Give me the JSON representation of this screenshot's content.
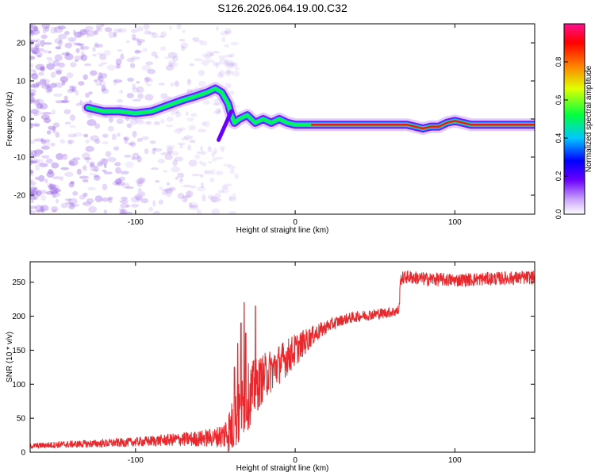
{
  "title": "S126.2026.064.19.00.C32",
  "colors": {
    "snr_line": "#e8282c",
    "spectrogram_noise": "#a070e8",
    "axis": "#000000"
  },
  "chart_data": [
    {
      "type": "heatmap",
      "name": "spectrogram",
      "xlabel": "Height of straight line (km)",
      "ylabel": "Frequency (Hz)",
      "xlim": [
        -166,
        150
      ],
      "ylim": [
        -25,
        25
      ],
      "xticks": [
        -100,
        0,
        100
      ],
      "yticks": [
        -20,
        -10,
        0,
        10,
        20
      ],
      "xtick_labels": [
        "-100",
        "0",
        "100"
      ],
      "ytick_labels": [
        "-20",
        "-10",
        "0",
        "10",
        "20"
      ],
      "ridge": {
        "x": [
          -130,
          -120,
          -110,
          -100,
          -90,
          -80,
          -70,
          -62,
          -55,
          -50,
          -46,
          -42,
          -40,
          -38,
          -35,
          -30,
          -25,
          -20,
          -15,
          -10,
          -5,
          0,
          10,
          20,
          40,
          60,
          70,
          75,
          80,
          85,
          90,
          95,
          100,
          110,
          130,
          150
        ],
        "y": [
          3,
          2,
          2,
          1.5,
          2,
          3.5,
          5,
          6,
          7,
          8,
          7,
          4,
          1,
          -1,
          0,
          1,
          -1,
          0,
          -1,
          0,
          -1,
          -1.5,
          -1.5,
          -1.5,
          -1.5,
          -1.5,
          -1.5,
          -2,
          -2.5,
          -2,
          -2,
          -1,
          -0.5,
          -1.5,
          -1.5,
          -1.5
        ]
      },
      "colorbar": {
        "label": "Normalized spectral amplitude",
        "range": [
          0,
          1
        ],
        "ticks": [
          0.0,
          0.2,
          0.4,
          0.6,
          0.8
        ],
        "tick_labels": [
          "0.0",
          "0.2",
          "0.4",
          "0.6",
          "0.8"
        ]
      }
    },
    {
      "type": "line",
      "name": "snr",
      "xlabel": "Height of straight line (km)",
      "ylabel": "SNR (10 * v/v)",
      "xlim": [
        -166,
        150
      ],
      "ylim": [
        0,
        280
      ],
      "xticks": [
        -100,
        0,
        100
      ],
      "yticks": [
        0,
        50,
        100,
        150,
        200,
        250
      ],
      "xtick_labels": [
        "-100",
        "0",
        "100"
      ],
      "ytick_labels": [
        "0",
        "50",
        "100",
        "150",
        "200",
        "250"
      ],
      "series": [
        {
          "name": "SNR",
          "x": [
            -166,
            -150,
            -120,
            -100,
            -80,
            -60,
            -50,
            -45,
            -40,
            -35,
            -30,
            -20,
            -10,
            0,
            10,
            20,
            30,
            40,
            50,
            60,
            65,
            66,
            70,
            80,
            100,
            120,
            150
          ],
          "base": [
            9,
            11,
            13,
            15,
            18,
            20,
            22,
            25,
            35,
            55,
            80,
            110,
            130,
            150,
            170,
            185,
            195,
            200,
            203,
            206,
            208,
            255,
            258,
            255,
            253,
            255,
            257
          ],
          "noise": [
            4,
            5,
            6,
            7,
            9,
            12,
            14,
            20,
            40,
            50,
            50,
            35,
            30,
            25,
            15,
            10,
            8,
            8,
            8,
            8,
            8,
            10,
            10,
            10,
            10,
            10,
            10
          ]
        }
      ],
      "spikes": {
        "x": [
          -38,
          -36,
          -34,
          -32,
          -31,
          -25
        ],
        "y": [
          125,
          160,
          190,
          220,
          175,
          215
        ]
      }
    }
  ]
}
